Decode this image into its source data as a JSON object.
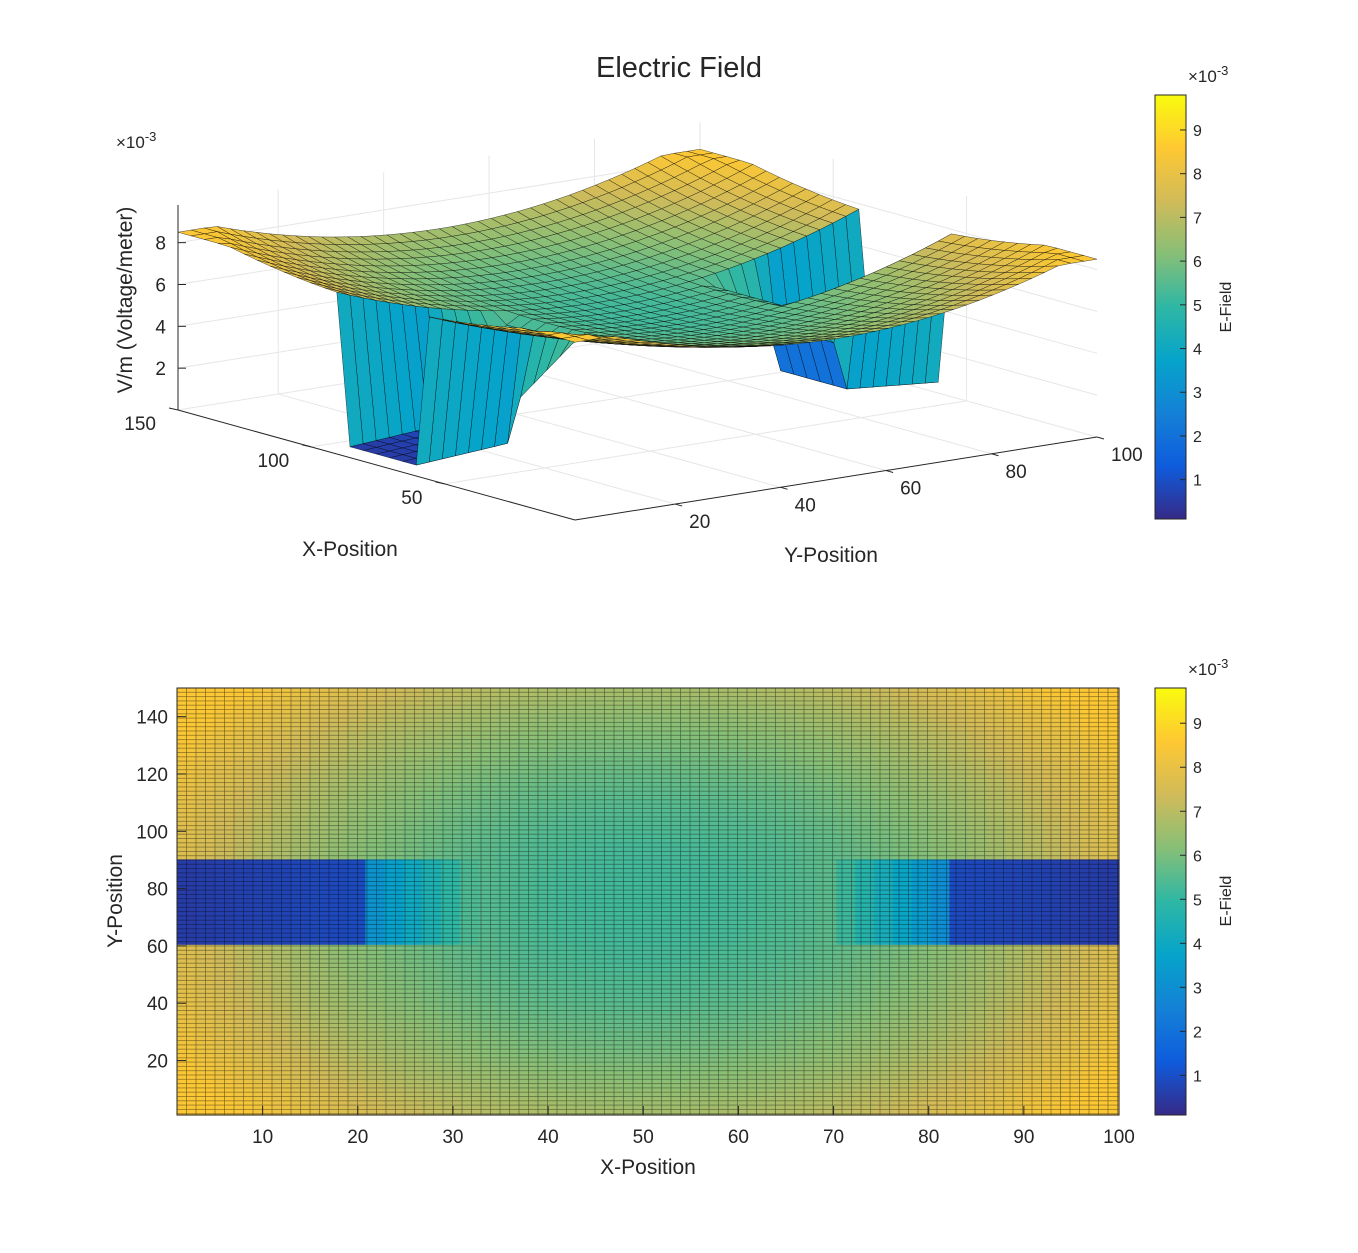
{
  "chart_data": [
    {
      "type": "surface",
      "title": "Electric Field",
      "xlabel": "X-Position",
      "ylabel": "Y-Position",
      "zlabel": "V/m (Voltage/meter)",
      "x_ticks": [
        "50",
        "100",
        "150"
      ],
      "y_ticks": [
        "20",
        "40",
        "60",
        "80",
        "100"
      ],
      "z_ticks": [
        "2",
        "4",
        "6",
        "8"
      ],
      "z_exponent": "×10",
      "z_exponent_power": "-3",
      "xlim": [
        1,
        150
      ],
      "ylim": [
        1,
        100
      ],
      "zlim": [
        0,
        0.0098
      ],
      "grid": true,
      "colorbar": {
        "label": "E-Field",
        "ticks": [
          "1",
          "2",
          "3",
          "4",
          "5",
          "6",
          "7",
          "8",
          "9"
        ],
        "exponent": "×10",
        "exponent_power": "-3",
        "range": [
          0.0001,
          0.0098
        ]
      },
      "field_model": {
        "description": "Field ~0.008 V/m at edges, ~0.005 V/m in center, ~0.0005 V/m in low strips",
        "edge_value": 0.0085,
        "center_value": 0.0052,
        "low_strip_value": 0.0005,
        "low_strip_y_range": [
          60,
          90
        ],
        "low_strip_x_ranges": [
          [
            1,
            20
          ],
          [
            82,
            100
          ]
        ]
      }
    },
    {
      "type": "heatmap",
      "title": "",
      "xlabel": "X-Position",
      "ylabel": "Y-Position",
      "x_ticks": [
        "10",
        "20",
        "30",
        "40",
        "50",
        "60",
        "70",
        "80",
        "90",
        "100"
      ],
      "y_ticks": [
        "20",
        "40",
        "60",
        "80",
        "100",
        "120",
        "140"
      ],
      "xlim": [
        1,
        100
      ],
      "ylim": [
        1,
        150
      ],
      "colorbar": {
        "label": "E-Field",
        "ticks": [
          "1",
          "2",
          "3",
          "4",
          "5",
          "6",
          "7",
          "8",
          "9"
        ],
        "exponent": "×10",
        "exponent_power": "-3",
        "range": [
          0.0001,
          0.0098
        ]
      }
    }
  ],
  "colors": {
    "parula": [
      "#352a87",
      "#0f5cdd",
      "#1481d6",
      "#06a4ca",
      "#2eb7a4",
      "#87bf77",
      "#d1bb59",
      "#fec832",
      "#f9fb0e"
    ],
    "grid": "#e6e6e6",
    "axis": "#262626"
  }
}
